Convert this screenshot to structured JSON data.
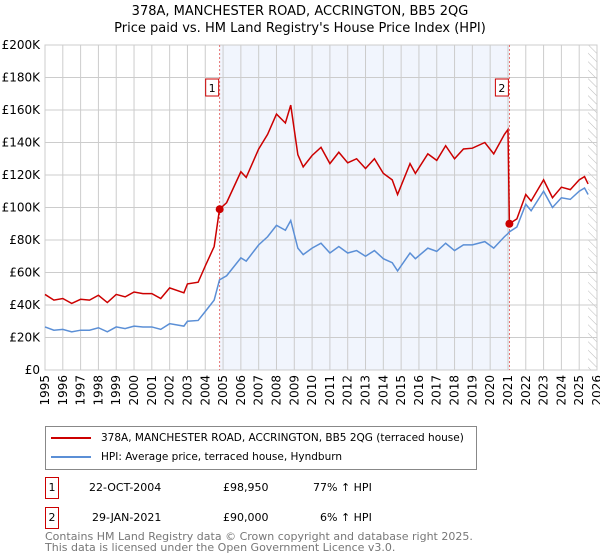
{
  "title": "378A, MANCHESTER ROAD, ACCRINGTON, BB5 2QG",
  "subtitle": "Price paid vs. HM Land Registry's House Price Index (HPI)",
  "chart_data": {
    "type": "line",
    "title": "378A, MANCHESTER ROAD, ACCRINGTON, BB5 2QG",
    "subtitle": "Price paid vs. HM Land Registry's House Price Index (HPI)",
    "xlim": [
      1995,
      2026
    ],
    "ylim": [
      0,
      200000
    ],
    "yticks": [
      0,
      20000,
      40000,
      60000,
      80000,
      100000,
      120000,
      140000,
      160000,
      180000,
      200000
    ],
    "ytick_labels": [
      "£0",
      "£20K",
      "£40K",
      "£60K",
      "£80K",
      "£100K",
      "£120K",
      "£140K",
      "£160K",
      "£180K",
      "£200K"
    ],
    "xticks": [
      1995,
      1996,
      1997,
      1998,
      1999,
      2000,
      2001,
      2002,
      2003,
      2004,
      2005,
      2006,
      2007,
      2008,
      2009,
      2010,
      2011,
      2012,
      2013,
      2014,
      2015,
      2016,
      2017,
      2018,
      2019,
      2020,
      2021,
      2022,
      2023,
      2024,
      2025,
      2026
    ],
    "grid": true,
    "series": [
      {
        "name": "378A, MANCHESTER ROAD, ACCRINGTON, BB5 2QG (terraced house)",
        "color": "#cc0000",
        "x": [
          1995,
          1995.5,
          1996,
          1996.5,
          1997,
          1997.5,
          1998,
          1998.5,
          1999,
          1999.5,
          2000,
          2000.5,
          2001,
          2001.5,
          2002,
          2002.8,
          2003,
          2003.6,
          2004,
          2004.5,
          2004.8,
          2005.2,
          2006,
          2006.3,
          2007,
          2007.5,
          2008,
          2008.5,
          2008.8,
          2009.2,
          2009.5,
          2010,
          2010.5,
          2011,
          2011.5,
          2012,
          2012.5,
          2013,
          2013.5,
          2014,
          2014.5,
          2014.8,
          2015.5,
          2015.8,
          2016.5,
          2017,
          2017.5,
          2018,
          2018.5,
          2019,
          2019.7,
          2020.2,
          2020.8,
          2021.0,
          2021.08,
          2021.5,
          2022,
          2022.3,
          2023,
          2023.5,
          2024,
          2024.5,
          2025,
          2025.3,
          2025.5
        ],
        "y": [
          46500,
          43000,
          44000,
          41000,
          43500,
          43000,
          46000,
          41500,
          46500,
          45000,
          48000,
          47000,
          47000,
          44000,
          50500,
          47500,
          53000,
          54000,
          64000,
          76000,
          98950,
          103000,
          122000,
          118500,
          136000,
          145000,
          157500,
          152000,
          163000,
          132500,
          125000,
          132000,
          137000,
          127000,
          134000,
          127500,
          130000,
          124000,
          130000,
          121000,
          117000,
          108000,
          127000,
          121000,
          133000,
          129000,
          138000,
          130000,
          136000,
          136500,
          140000,
          133000,
          145000,
          148000,
          90000,
          93000,
          108000,
          104000,
          117000,
          106000,
          112500,
          111000,
          117000,
          119000,
          114500
        ]
      },
      {
        "name": "HPI: Average price, terraced house, Hyndburn",
        "color": "#5b8fd6",
        "x": [
          1995,
          1995.5,
          1996,
          1996.5,
          1997,
          1997.5,
          1998,
          1998.5,
          1999,
          1999.5,
          2000,
          2000.5,
          2001,
          2001.5,
          2002,
          2002.8,
          2003,
          2003.6,
          2004,
          2004.5,
          2004.8,
          2005.2,
          2006,
          2006.3,
          2007,
          2007.5,
          2008,
          2008.5,
          2008.8,
          2009.2,
          2009.5,
          2010,
          2010.5,
          2011,
          2011.5,
          2012,
          2012.5,
          2013,
          2013.5,
          2014,
          2014.5,
          2014.8,
          2015.5,
          2015.8,
          2016.5,
          2017,
          2017.5,
          2018,
          2018.5,
          2019,
          2019.7,
          2020.2,
          2020.8,
          2021.0,
          2021.08,
          2021.5,
          2022,
          2022.3,
          2023,
          2023.5,
          2024,
          2024.5,
          2025,
          2025.3,
          2025.5
        ],
        "y": [
          26500,
          24500,
          25000,
          23500,
          24500,
          24500,
          26000,
          23500,
          26500,
          25500,
          27000,
          26500,
          26500,
          25000,
          28500,
          27000,
          30000,
          30500,
          36000,
          43000,
          55500,
          58000,
          69000,
          67000,
          77000,
          82000,
          89000,
          86000,
          92000,
          75000,
          71000,
          75000,
          78000,
          72000,
          76000,
          72000,
          73500,
          70000,
          73500,
          68500,
          66000,
          61000,
          72000,
          68500,
          75000,
          73000,
          78000,
          73500,
          77000,
          77000,
          79000,
          75000,
          82000,
          84000,
          85000,
          88000,
          102000,
          98000,
          110000,
          100000,
          106000,
          105000,
          110000,
          112000,
          108000
        ]
      }
    ],
    "sales": [
      {
        "label": "1",
        "x": 2004.81,
        "y": 98950
      },
      {
        "label": "2",
        "x": 2021.08,
        "y": 90000
      }
    ],
    "shaded_range": [
      2004.81,
      2021.08
    ],
    "hatched_from": 2025.5,
    "legend_position": "below"
  },
  "legend": {
    "items": [
      "378A, MANCHESTER ROAD, ACCRINGTON, BB5 2QG (terraced house)",
      "HPI: Average price, terraced house, Hyndburn"
    ]
  },
  "sales_table": [
    {
      "num": "1",
      "date": "22-OCT-2004",
      "price": "£98,950",
      "hpi": "77% ↑ HPI"
    },
    {
      "num": "2",
      "date": "29-JAN-2021",
      "price": "£90,000",
      "hpi": "6% ↑ HPI"
    }
  ],
  "footer": {
    "line1": "Contains HM Land Registry data © Crown copyright and database right 2025.",
    "line2": "This data is licensed under the Open Government Licence v3.0."
  }
}
